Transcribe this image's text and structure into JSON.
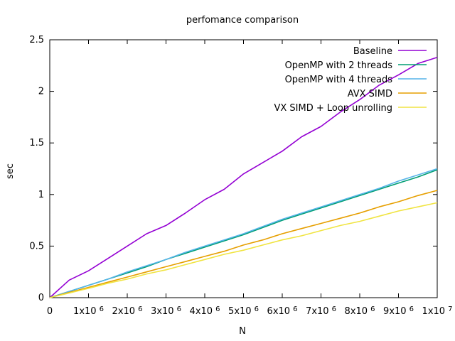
{
  "chart_data": {
    "type": "line",
    "title": "perfomance comparison",
    "xlabel": "N",
    "ylabel": "sec",
    "xlim": [
      0,
      10000000
    ],
    "ylim": [
      0,
      2.5
    ],
    "grid": false,
    "legend_position": "top-right",
    "x_ticks": [
      {
        "value": 0,
        "mantissa": "0",
        "exp": ""
      },
      {
        "value": 1000000,
        "mantissa": "1x10",
        "exp": "6"
      },
      {
        "value": 2000000,
        "mantissa": "2x10",
        "exp": "6"
      },
      {
        "value": 3000000,
        "mantissa": "3x10",
        "exp": "6"
      },
      {
        "value": 4000000,
        "mantissa": "4x10",
        "exp": "6"
      },
      {
        "value": 5000000,
        "mantissa": "5x10",
        "exp": "6"
      },
      {
        "value": 6000000,
        "mantissa": "6x10",
        "exp": "6"
      },
      {
        "value": 7000000,
        "mantissa": "7x10",
        "exp": "6"
      },
      {
        "value": 8000000,
        "mantissa": "8x10",
        "exp": "6"
      },
      {
        "value": 9000000,
        "mantissa": "9x10",
        "exp": "6"
      },
      {
        "value": 10000000,
        "mantissa": "1x10",
        "exp": "7"
      }
    ],
    "y_ticks": [
      {
        "value": 0,
        "label": "0"
      },
      {
        "value": 0.5,
        "label": "0.5"
      },
      {
        "value": 1,
        "label": "1"
      },
      {
        "value": 1.5,
        "label": "1.5"
      },
      {
        "value": 2,
        "label": "2"
      },
      {
        "value": 2.5,
        "label": "2.5"
      }
    ],
    "x": [
      0,
      500000,
      1000000,
      1500000,
      2000000,
      2500000,
      3000000,
      3500000,
      4000000,
      4500000,
      5000000,
      5500000,
      6000000,
      6500000,
      7000000,
      7500000,
      8000000,
      8500000,
      9000000,
      9500000,
      10000000
    ],
    "series": [
      {
        "name": "Baseline",
        "color": "#9400d3",
        "values": [
          0,
          0.17,
          0.26,
          0.38,
          0.5,
          0.62,
          0.7,
          0.82,
          0.95,
          1.05,
          1.2,
          1.31,
          1.42,
          1.56,
          1.66,
          1.8,
          1.92,
          2.06,
          2.16,
          2.27,
          2.33
        ]
      },
      {
        "name": "OpenMP with 2 threads",
        "color": "#009e73",
        "values": [
          0,
          0.06,
          0.12,
          0.18,
          0.24,
          0.3,
          0.37,
          0.43,
          0.49,
          0.55,
          0.61,
          0.68,
          0.75,
          0.81,
          0.87,
          0.93,
          0.99,
          1.05,
          1.11,
          1.17,
          1.24
        ]
      },
      {
        "name": "OpenMP with 4 threads",
        "color": "#56b4e9",
        "values": [
          0,
          0.06,
          0.12,
          0.18,
          0.25,
          0.31,
          0.37,
          0.44,
          0.5,
          0.56,
          0.62,
          0.69,
          0.76,
          0.82,
          0.88,
          0.94,
          1.0,
          1.06,
          1.13,
          1.19,
          1.25
        ]
      },
      {
        "name": "AVX SIMD",
        "color": "#e69f00",
        "values": [
          0,
          0.05,
          0.1,
          0.15,
          0.2,
          0.25,
          0.3,
          0.35,
          0.4,
          0.45,
          0.51,
          0.56,
          0.62,
          0.67,
          0.72,
          0.77,
          0.82,
          0.88,
          0.93,
          0.99,
          1.04
        ]
      },
      {
        "name": "VX SIMD + Loop unrolling",
        "color": "#f0e442",
        "values": [
          0,
          0.045,
          0.09,
          0.14,
          0.18,
          0.23,
          0.27,
          0.32,
          0.37,
          0.42,
          0.46,
          0.51,
          0.56,
          0.6,
          0.65,
          0.7,
          0.74,
          0.79,
          0.84,
          0.88,
          0.92
        ]
      }
    ]
  }
}
